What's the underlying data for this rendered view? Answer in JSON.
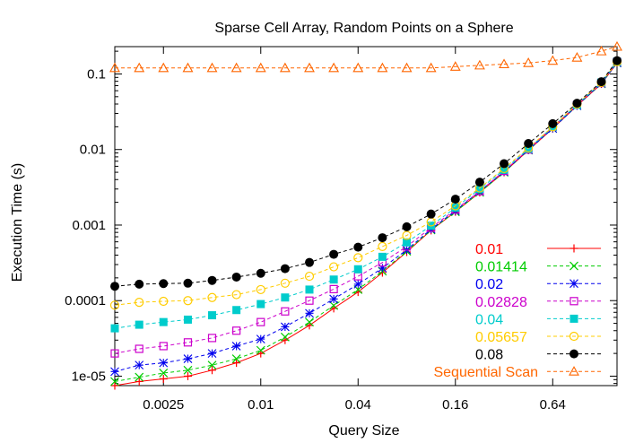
{
  "chart_data": {
    "type": "line",
    "title": "Sparse Cell Array, Random Points on a Sphere",
    "xlabel": "Query Size",
    "ylabel": "Execution Time (s)",
    "xscale": "log",
    "yscale": "log",
    "xlim": [
      0.00125,
      1.6
    ],
    "ylim": [
      7.5e-06,
      0.23
    ],
    "xticks": [
      0.0025,
      0.01,
      0.04,
      0.16,
      0.64
    ],
    "xtick_labels": [
      "0.0025",
      "0.01",
      "0.04",
      "0.16",
      "0.64"
    ],
    "yticks": [
      1e-05,
      0.0001,
      0.001,
      0.01,
      0.1
    ],
    "ytick_labels": [
      "1e-05",
      "0.0001",
      "0.001",
      "0.01",
      "0.1"
    ],
    "legend_position": "bottom-right",
    "grid": false,
    "x": [
      0.00125,
      0.00177,
      0.0025,
      0.00354,
      0.005,
      0.00707,
      0.01,
      0.01414,
      0.02,
      0.02828,
      0.04,
      0.05657,
      0.08,
      0.11314,
      0.16,
      0.22627,
      0.32,
      0.45255,
      0.64,
      0.9051,
      1.28,
      1.6
    ],
    "series": [
      {
        "name": "0.01",
        "color": "#ff0000",
        "marker": "plus",
        "values": [
          7.5e-06,
          8.5e-06,
          9.2e-06,
          1e-05,
          1.2e-05,
          1.5e-05,
          2e-05,
          3e-05,
          4.7e-05,
          7.9e-05,
          0.00013,
          0.000235,
          0.00044,
          0.00085,
          0.0015,
          0.0027,
          0.005,
          0.0098,
          0.019,
          0.038,
          0.074,
          0.14
        ]
      },
      {
        "name": "0.01414",
        "color": "#00cc00",
        "marker": "cross",
        "values": [
          8.5e-06,
          9.7e-06,
          1.1e-05,
          1.2e-05,
          1.4e-05,
          1.7e-05,
          2.2e-05,
          3.3e-05,
          5.2e-05,
          8.6e-05,
          0.00014,
          0.000245,
          0.00045,
          0.00086,
          0.0015,
          0.0027,
          0.005,
          0.0098,
          0.019,
          0.038,
          0.074,
          0.14
        ]
      },
      {
        "name": "0.02",
        "color": "#0000ee",
        "marker": "star",
        "values": [
          1.15e-05,
          1.4e-05,
          1.5e-05,
          1.7e-05,
          2e-05,
          2.5e-05,
          3.1e-05,
          4.5e-05,
          6.8e-05,
          0.000105,
          0.000165,
          0.00027,
          0.00047,
          0.00088,
          0.00155,
          0.0028,
          0.0051,
          0.0099,
          0.019,
          0.038,
          0.075,
          0.14
        ]
      },
      {
        "name": "0.02828",
        "color": "#cc00cc",
        "marker": "square-open",
        "values": [
          2e-05,
          2.3e-05,
          2.5e-05,
          2.8e-05,
          3.2e-05,
          4e-05,
          5.2e-05,
          7.2e-05,
          0.0001,
          0.000142,
          0.00021,
          0.00032,
          0.00052,
          0.00092,
          0.0016,
          0.0028,
          0.0052,
          0.01,
          0.02,
          0.039,
          0.076,
          0.145
        ]
      },
      {
        "name": "0.04",
        "color": "#00cccc",
        "marker": "square-filled",
        "values": [
          4.3e-05,
          4.8e-05,
          5.2e-05,
          5.6e-05,
          6.4e-05,
          7.5e-05,
          9e-05,
          0.00011,
          0.00014,
          0.00019,
          0.00026,
          0.00038,
          0.00059,
          0.00098,
          0.0017,
          0.003,
          0.0054,
          0.0102,
          0.02,
          0.039,
          0.077,
          0.145
        ]
      },
      {
        "name": "0.05657",
        "color": "#ffcc00",
        "marker": "circle-open",
        "values": [
          8.7e-05,
          9.5e-05,
          9.8e-05,
          0.0001,
          0.00011,
          0.00012,
          0.00014,
          0.00017,
          0.00021,
          0.00028,
          0.00037,
          0.00052,
          0.00073,
          0.0011,
          0.0018,
          0.0031,
          0.0056,
          0.0105,
          0.02,
          0.04,
          0.077,
          0.145
        ]
      },
      {
        "name": "0.08",
        "color": "#000000",
        "marker": "circle-filled",
        "values": [
          0.000155,
          0.000165,
          0.000168,
          0.00017,
          0.000185,
          0.000205,
          0.00023,
          0.000265,
          0.00032,
          0.00041,
          0.00051,
          0.00068,
          0.00095,
          0.0014,
          0.0022,
          0.0037,
          0.0065,
          0.012,
          0.022,
          0.041,
          0.079,
          0.15
        ]
      },
      {
        "name": "Sequential Scan",
        "color": "#ff6600",
        "marker": "triangle-open",
        "values": [
          0.12,
          0.12,
          0.12,
          0.12,
          0.12,
          0.12,
          0.12,
          0.12,
          0.12,
          0.12,
          0.12,
          0.12,
          0.12,
          0.12,
          0.125,
          0.13,
          0.135,
          0.14,
          0.15,
          0.165,
          0.2,
          0.23
        ]
      }
    ]
  }
}
